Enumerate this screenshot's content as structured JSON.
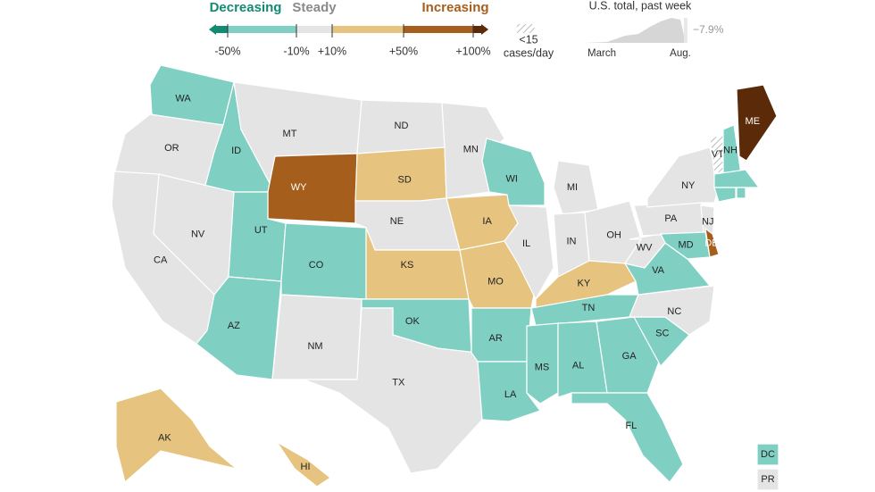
{
  "legend": {
    "decreasing": "Decreasing",
    "steady": "Steady",
    "increasing": "Increasing",
    "ticks": [
      "-50%",
      "-10%",
      "+10%",
      "+50%",
      "+100%"
    ],
    "low_cases": [
      "<15",
      "cases/day"
    ]
  },
  "inset": {
    "title": "U.S. total, past week",
    "start": "March",
    "end": "Aug.",
    "change": "−7.9%"
  },
  "colors": {
    "strong_decrease": "#138a74",
    "decreasing": "#7fd0c2",
    "steady": "#e4e4e4",
    "increasing": "#e6c47f",
    "strong_increase": "#a65e1c",
    "very_strong_increase": "#5b2a08",
    "low": "#ffffff"
  },
  "states": [
    {
      "label": "WA",
      "status": "decreasing"
    },
    {
      "label": "OR",
      "status": "steady"
    },
    {
      "label": "ID",
      "status": "decreasing"
    },
    {
      "label": "MT",
      "status": "steady"
    },
    {
      "label": "WY",
      "status": "strong_increase"
    },
    {
      "label": "NV",
      "status": "steady"
    },
    {
      "label": "CA",
      "status": "steady"
    },
    {
      "label": "UT",
      "status": "decreasing"
    },
    {
      "label": "AZ",
      "status": "decreasing"
    },
    {
      "label": "CO",
      "status": "decreasing"
    },
    {
      "label": "NM",
      "status": "steady"
    },
    {
      "label": "ND",
      "status": "steady"
    },
    {
      "label": "SD",
      "status": "increasing"
    },
    {
      "label": "NE",
      "status": "steady"
    },
    {
      "label": "KS",
      "status": "increasing"
    },
    {
      "label": "OK",
      "status": "decreasing"
    },
    {
      "label": "TX",
      "status": "steady"
    },
    {
      "label": "MN",
      "status": "steady"
    },
    {
      "label": "IA",
      "status": "increasing"
    },
    {
      "label": "MO",
      "status": "increasing"
    },
    {
      "label": "AR",
      "status": "decreasing"
    },
    {
      "label": "LA",
      "status": "decreasing"
    },
    {
      "label": "WI",
      "status": "decreasing"
    },
    {
      "label": "IL",
      "status": "steady"
    },
    {
      "label": "MI",
      "status": "steady"
    },
    {
      "label": "IN",
      "status": "steady"
    },
    {
      "label": "OH",
      "status": "steady"
    },
    {
      "label": "KY",
      "status": "increasing"
    },
    {
      "label": "TN",
      "status": "decreasing"
    },
    {
      "label": "MS",
      "status": "decreasing"
    },
    {
      "label": "AL",
      "status": "decreasing"
    },
    {
      "label": "GA",
      "status": "decreasing"
    },
    {
      "label": "FL",
      "status": "decreasing"
    },
    {
      "label": "SC",
      "status": "decreasing"
    },
    {
      "label": "NC",
      "status": "steady"
    },
    {
      "label": "VA",
      "status": "decreasing"
    },
    {
      "label": "WV",
      "status": "steady"
    },
    {
      "label": "PA",
      "status": "steady"
    },
    {
      "label": "NY",
      "status": "steady"
    },
    {
      "label": "NJ",
      "status": "steady"
    },
    {
      "label": "MD",
      "status": "decreasing"
    },
    {
      "label": "DE",
      "status": "strong_increase"
    },
    {
      "label": "VT",
      "status": "low"
    },
    {
      "label": "NH",
      "status": "decreasing"
    },
    {
      "label": "ME",
      "status": "very_strong_increase"
    },
    {
      "label": null,
      "status": "decreasing"
    },
    {
      "label": null,
      "status": "decreasing"
    },
    {
      "label": null,
      "status": "decreasing"
    },
    {
      "label": "AK",
      "status": "increasing"
    },
    {
      "label": "HI",
      "status": "increasing"
    },
    {
      "label": "DC",
      "status": "decreasing"
    },
    {
      "label": "PR",
      "status": "steady"
    }
  ]
}
